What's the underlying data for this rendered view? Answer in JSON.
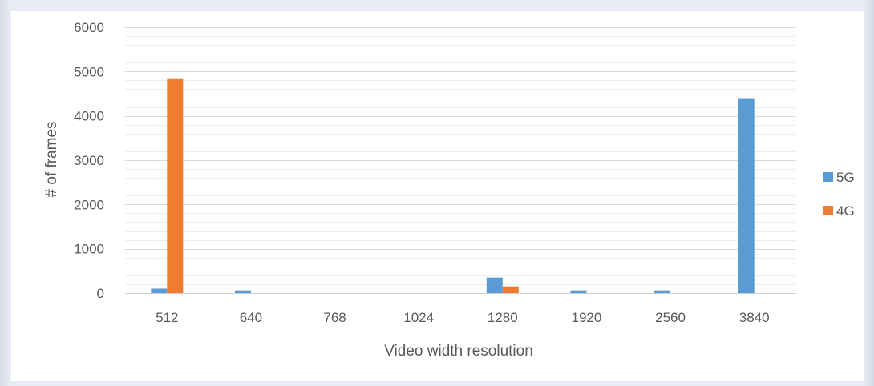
{
  "chart_data": {
    "type": "bar",
    "title": "",
    "xlabel": "Video width resolution",
    "ylabel": "# of frames",
    "categories": [
      "512",
      "640",
      "768",
      "1024",
      "1280",
      "1920",
      "2560",
      "3840"
    ],
    "series": [
      {
        "name": "5G",
        "color": "#5b9bd5",
        "values": [
          100,
          60,
          0,
          0,
          350,
          60,
          60,
          4400
        ]
      },
      {
        "name": "4G",
        "color": "#ed7d31",
        "values": [
          4830,
          0,
          0,
          0,
          150,
          0,
          0,
          0
        ]
      }
    ],
    "ylim": [
      0,
      6000
    ],
    "yticks": [
      "0",
      "1000",
      "2000",
      "3000",
      "4000",
      "5000",
      "6000"
    ],
    "grid": true,
    "legend_position": "right"
  }
}
